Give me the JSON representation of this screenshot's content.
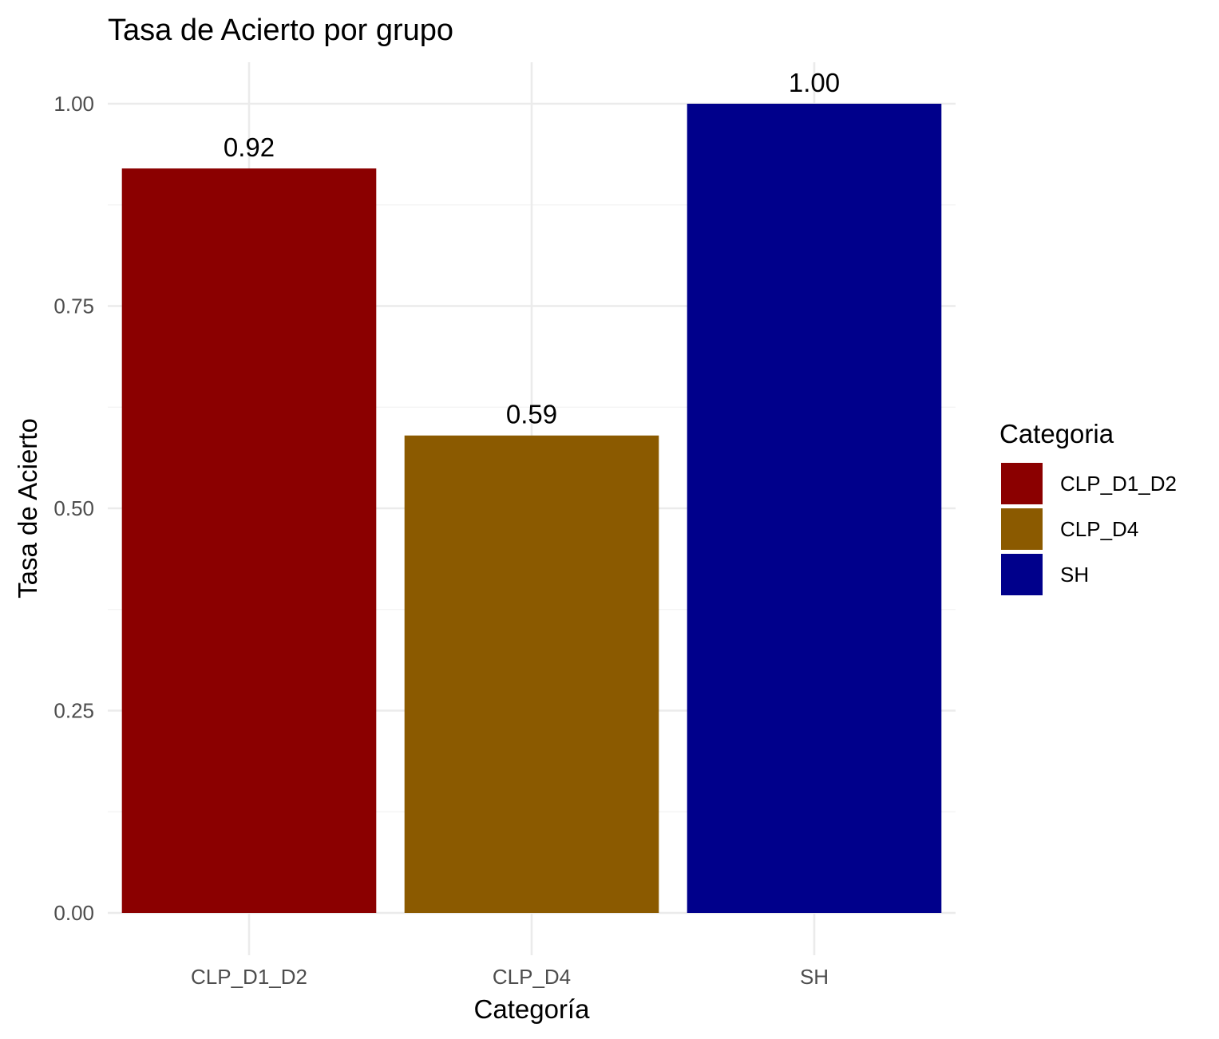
{
  "chart_data": {
    "type": "bar",
    "title": "Tasa de Acierto por grupo",
    "xlabel": "Categoría",
    "ylabel": "Tasa de Acierto",
    "categories": [
      "CLP_D1_D2",
      "CLP_D4",
      "SH"
    ],
    "values": [
      0.92,
      0.59,
      1.0
    ],
    "data_labels": [
      "0.92",
      "0.59",
      "1.00"
    ],
    "colors": [
      "#8B0000",
      "#8B5A00",
      "#00008B"
    ],
    "ylim": [
      0,
      1.05
    ],
    "yticks": [
      0,
      0.25,
      0.5,
      0.75,
      1.0
    ],
    "ytick_labels": [
      "0.00",
      "0.25",
      "0.50",
      "0.75",
      "1.00"
    ],
    "grid": true,
    "legend": {
      "title": "Categoria",
      "position": "right",
      "entries": [
        "CLP_D1_D2",
        "CLP_D4",
        "SH"
      ]
    }
  }
}
